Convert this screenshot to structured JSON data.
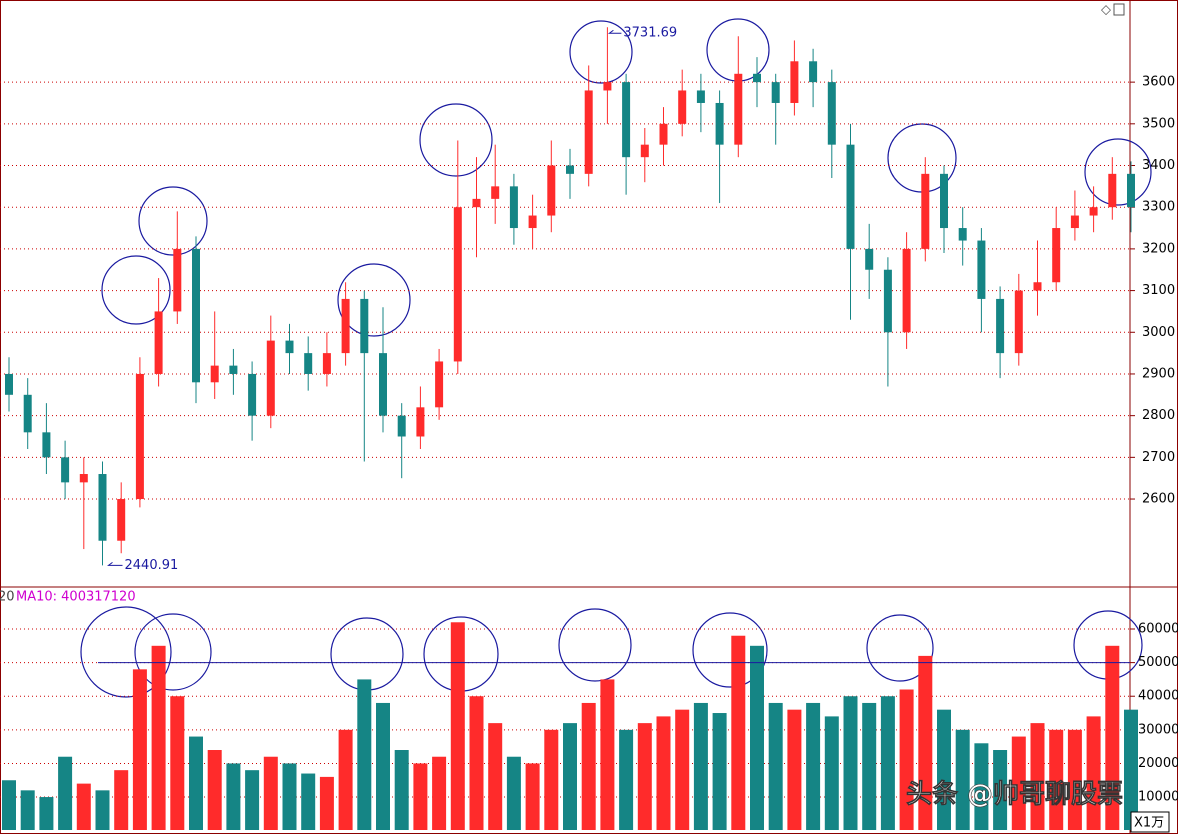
{
  "chart_data": [
    {
      "type": "candlestick",
      "x": [
        0,
        1,
        2,
        3,
        4,
        5,
        6,
        7,
        8,
        9,
        10,
        11,
        12,
        13,
        14,
        15,
        16,
        17,
        18,
        19,
        20,
        21,
        22,
        23,
        24,
        25,
        26,
        27,
        28,
        29,
        30,
        31,
        32,
        33,
        34,
        35,
        36,
        37,
        38,
        39,
        40,
        41,
        42,
        43,
        44,
        45,
        46,
        47,
        48,
        49,
        50,
        51,
        52,
        53,
        54,
        55,
        56,
        57,
        58,
        59,
        60
      ],
      "open": [
        2900,
        2850,
        2760,
        2700,
        2640,
        2660,
        2500,
        2600,
        2900,
        3050,
        3200,
        2880,
        2920,
        2900,
        2800,
        2980,
        2950,
        2900,
        2950,
        3080,
        2950,
        2800,
        2750,
        2820,
        2930,
        3300,
        3320,
        3350,
        3250,
        3280,
        3400,
        3380,
        3580,
        3600,
        3420,
        3450,
        3500,
        3580,
        3550,
        3450,
        3620,
        3600,
        3550,
        3650,
        3600,
        3450,
        3200,
        3150,
        3000,
        3200,
        3380,
        3250,
        3220,
        3080,
        2950,
        3100,
        3120,
        3250,
        3280,
        3300,
        3380
      ],
      "high": [
        2940,
        2890,
        2830,
        2740,
        2700,
        2690,
        2640,
        2940,
        3130,
        3290,
        3230,
        3050,
        2960,
        2930,
        3040,
        3020,
        2990,
        3000,
        3120,
        3100,
        3060,
        2830,
        2870,
        2960,
        3460,
        3420,
        3450,
        3380,
        3330,
        3460,
        3440,
        3640,
        3731.69,
        3620,
        3490,
        3540,
        3630,
        3620,
        3580,
        3710,
        3660,
        3620,
        3700,
        3680,
        3630,
        3500,
        3260,
        3180,
        3240,
        3420,
        3400,
        3300,
        3250,
        3110,
        3140,
        3220,
        3300,
        3340,
        3350,
        3420,
        3410
      ],
      "low": [
        2810,
        2720,
        2660,
        2600,
        2480,
        2440.91,
        2470,
        2580,
        2870,
        3020,
        2830,
        2840,
        2850,
        2740,
        2770,
        2900,
        2860,
        2870,
        2920,
        2690,
        2760,
        2650,
        2720,
        2790,
        2900,
        3180,
        3260,
        3210,
        3200,
        3240,
        3320,
        3350,
        3500,
        3330,
        3360,
        3400,
        3470,
        3480,
        3310,
        3420,
        3540,
        3450,
        3520,
        3540,
        3370,
        3030,
        3080,
        2870,
        2960,
        3170,
        3190,
        3160,
        3000,
        2890,
        2920,
        3040,
        3100,
        3220,
        3240,
        3270,
        3240
      ],
      "close": [
        2850,
        2760,
        2700,
        2640,
        2660,
        2500,
        2600,
        2900,
        3050,
        3200,
        2880,
        2920,
        2900,
        2800,
        2980,
        2950,
        2900,
        2950,
        3080,
        2950,
        2800,
        2750,
        2820,
        2930,
        3300,
        3320,
        3350,
        3250,
        3280,
        3400,
        3380,
        3580,
        3600,
        3420,
        3450,
        3500,
        3580,
        3550,
        3450,
        3620,
        3600,
        3550,
        3650,
        3600,
        3450,
        3200,
        3150,
        3000,
        3200,
        3380,
        3250,
        3220,
        3080,
        2950,
        3100,
        3120,
        3250,
        3280,
        3300,
        3380,
        3300
      ],
      "up_color": "#ff2b2b",
      "down_color": "#158585",
      "ylim": [
        2389,
        3797
      ],
      "yticks": [
        2600,
        2700,
        2800,
        2900,
        3000,
        3100,
        3200,
        3300,
        3400,
        3500,
        3600
      ],
      "grid": true
    },
    {
      "type": "bar",
      "clipped_text": "20",
      "ma_label": "MA10: 400317120",
      "unit_label": "X1万",
      "values": [
        15000,
        12000,
        10000,
        22000,
        14000,
        12000,
        18000,
        48000,
        55000,
        40000,
        28000,
        24000,
        20000,
        18000,
        22000,
        20000,
        17000,
        16000,
        30000,
        45000,
        38000,
        24000,
        20000,
        22000,
        62000,
        40000,
        32000,
        22000,
        20000,
        30000,
        32000,
        38000,
        45000,
        30000,
        32000,
        34000,
        36000,
        38000,
        35000,
        58000,
        55000,
        38000,
        36000,
        38000,
        34000,
        40000,
        38000,
        40000,
        42000,
        52000,
        36000,
        30000,
        26000,
        24000,
        28000,
        32000,
        30000,
        30000,
        34000,
        55000,
        36000
      ],
      "reference_line": 50000,
      "ylim": [
        200,
        72200
      ],
      "yticks": [
        10000,
        20000,
        30000,
        40000,
        50000,
        60000
      ],
      "grid": true
    }
  ],
  "watermark": "头条 @帅哥聊股票"
}
